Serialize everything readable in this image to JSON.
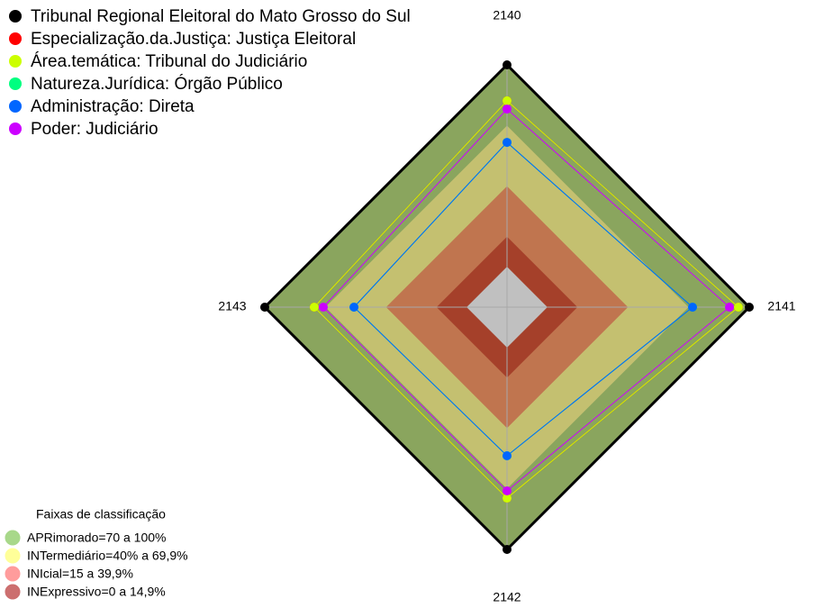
{
  "chart_data": {
    "type": "radar",
    "categories": [
      "2140",
      "2141",
      "2142",
      "2143"
    ],
    "rlim": [
      -20,
      100
    ],
    "series": [
      {
        "name": "Tribunal Regional Eleitoral do Mato Grosso do Sul",
        "color": "#000000",
        "values": [
          100,
          100,
          100,
          100
        ]
      },
      {
        "name": "Especialização.da.Justiça: Justiça Eleitoral",
        "color": "#ff0000",
        "values": [
          82.2,
          94.6,
          74.6,
          75.5
        ]
      },
      {
        "name": "Área.temática: Tribunal do Judiciário",
        "color": "#ccff00",
        "values": [
          82.2,
          94.6,
          74.6,
          75.5
        ]
      },
      {
        "name": "Natureza.Jurídica: Órgão Público",
        "color": "#00ff80",
        "values": [
          61.6,
          71.9,
          53.6,
          55.8
        ]
      },
      {
        "name": "Administração: Direta",
        "color": "#0066ff",
        "values": [
          61.6,
          71.9,
          53.6,
          55.8
        ]
      },
      {
        "name": "Poder: Judiciário",
        "color": "#cc00ff",
        "values": [
          78.1,
          90.2,
          71,
          71
        ]
      }
    ],
    "band_legend_title": "Faixas de classificação",
    "bands": [
      {
        "label": "APRimorado=70 a 100%",
        "from": 70,
        "to": 100,
        "color": "#8aa55e",
        "legend_color": "#a8d88a"
      },
      {
        "label": "INTermediário=40% a 69,9%",
        "from": 40,
        "to": 69.9,
        "color": "#c4c070",
        "legend_color": "#ffff99"
      },
      {
        "label": "INIcial=15 a 39,9%",
        "from": 15,
        "to": 39.9,
        "color": "#c0754f",
        "legend_color": "#ff9c9c"
      },
      {
        "label": "INExpressivo=0 a 14,9%",
        "from": 0,
        "to": 14.9,
        "color": "#a5402a",
        "legend_color": "#cc6f6f"
      }
    ]
  }
}
